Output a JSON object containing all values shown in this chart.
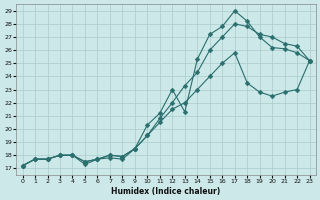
{
  "xlabel": "Humidex (Indice chaleur)",
  "bg_color": "#cce8e8",
  "grid_color": "#aacccc",
  "line_color": "#2a6e6e",
  "xlim": [
    -0.5,
    23.5
  ],
  "ylim": [
    16.5,
    29.5
  ],
  "xticks": [
    0,
    1,
    2,
    3,
    4,
    5,
    6,
    7,
    8,
    9,
    10,
    11,
    12,
    13,
    14,
    15,
    16,
    17,
    18,
    19,
    20,
    21,
    22,
    23
  ],
  "yticks": [
    17,
    18,
    19,
    20,
    21,
    22,
    23,
    24,
    25,
    26,
    27,
    28,
    29
  ],
  "line1_x": [
    0,
    1,
    2,
    3,
    4,
    5,
    6,
    7,
    8,
    9,
    10,
    11,
    12,
    13,
    14,
    15,
    16,
    17,
    18,
    19,
    20,
    21,
    22,
    23
  ],
  "line1_y": [
    17.2,
    17.7,
    17.7,
    18.0,
    18.0,
    17.3,
    17.7,
    17.8,
    17.7,
    18.5,
    20.3,
    21.2,
    23.0,
    21.3,
    25.3,
    27.2,
    27.8,
    29.0,
    28.2,
    27.0,
    26.2,
    26.1,
    25.8,
    25.2
  ],
  "line2_x": [
    0,
    1,
    2,
    3,
    4,
    5,
    6,
    7,
    8,
    9,
    10,
    11,
    12,
    13,
    14,
    15,
    16,
    17,
    18,
    19,
    20,
    21,
    22,
    23
  ],
  "line2_y": [
    17.2,
    17.7,
    17.7,
    18.0,
    18.0,
    17.5,
    17.7,
    18.0,
    17.9,
    18.5,
    19.5,
    20.8,
    22.0,
    23.3,
    24.3,
    26.0,
    27.0,
    28.0,
    27.8,
    27.2,
    27.0,
    26.5,
    26.3,
    25.2
  ],
  "line3_x": [
    0,
    1,
    2,
    3,
    4,
    5,
    6,
    7,
    8,
    9,
    10,
    11,
    12,
    13,
    14,
    15,
    16,
    17,
    18,
    19,
    20,
    21,
    22,
    23
  ],
  "line3_y": [
    17.2,
    17.7,
    17.7,
    18.0,
    18.0,
    17.5,
    17.7,
    18.0,
    17.9,
    18.5,
    19.5,
    20.5,
    21.5,
    22.0,
    23.0,
    24.0,
    25.0,
    25.8,
    23.5,
    22.8,
    22.5,
    22.8,
    23.0,
    25.2
  ]
}
